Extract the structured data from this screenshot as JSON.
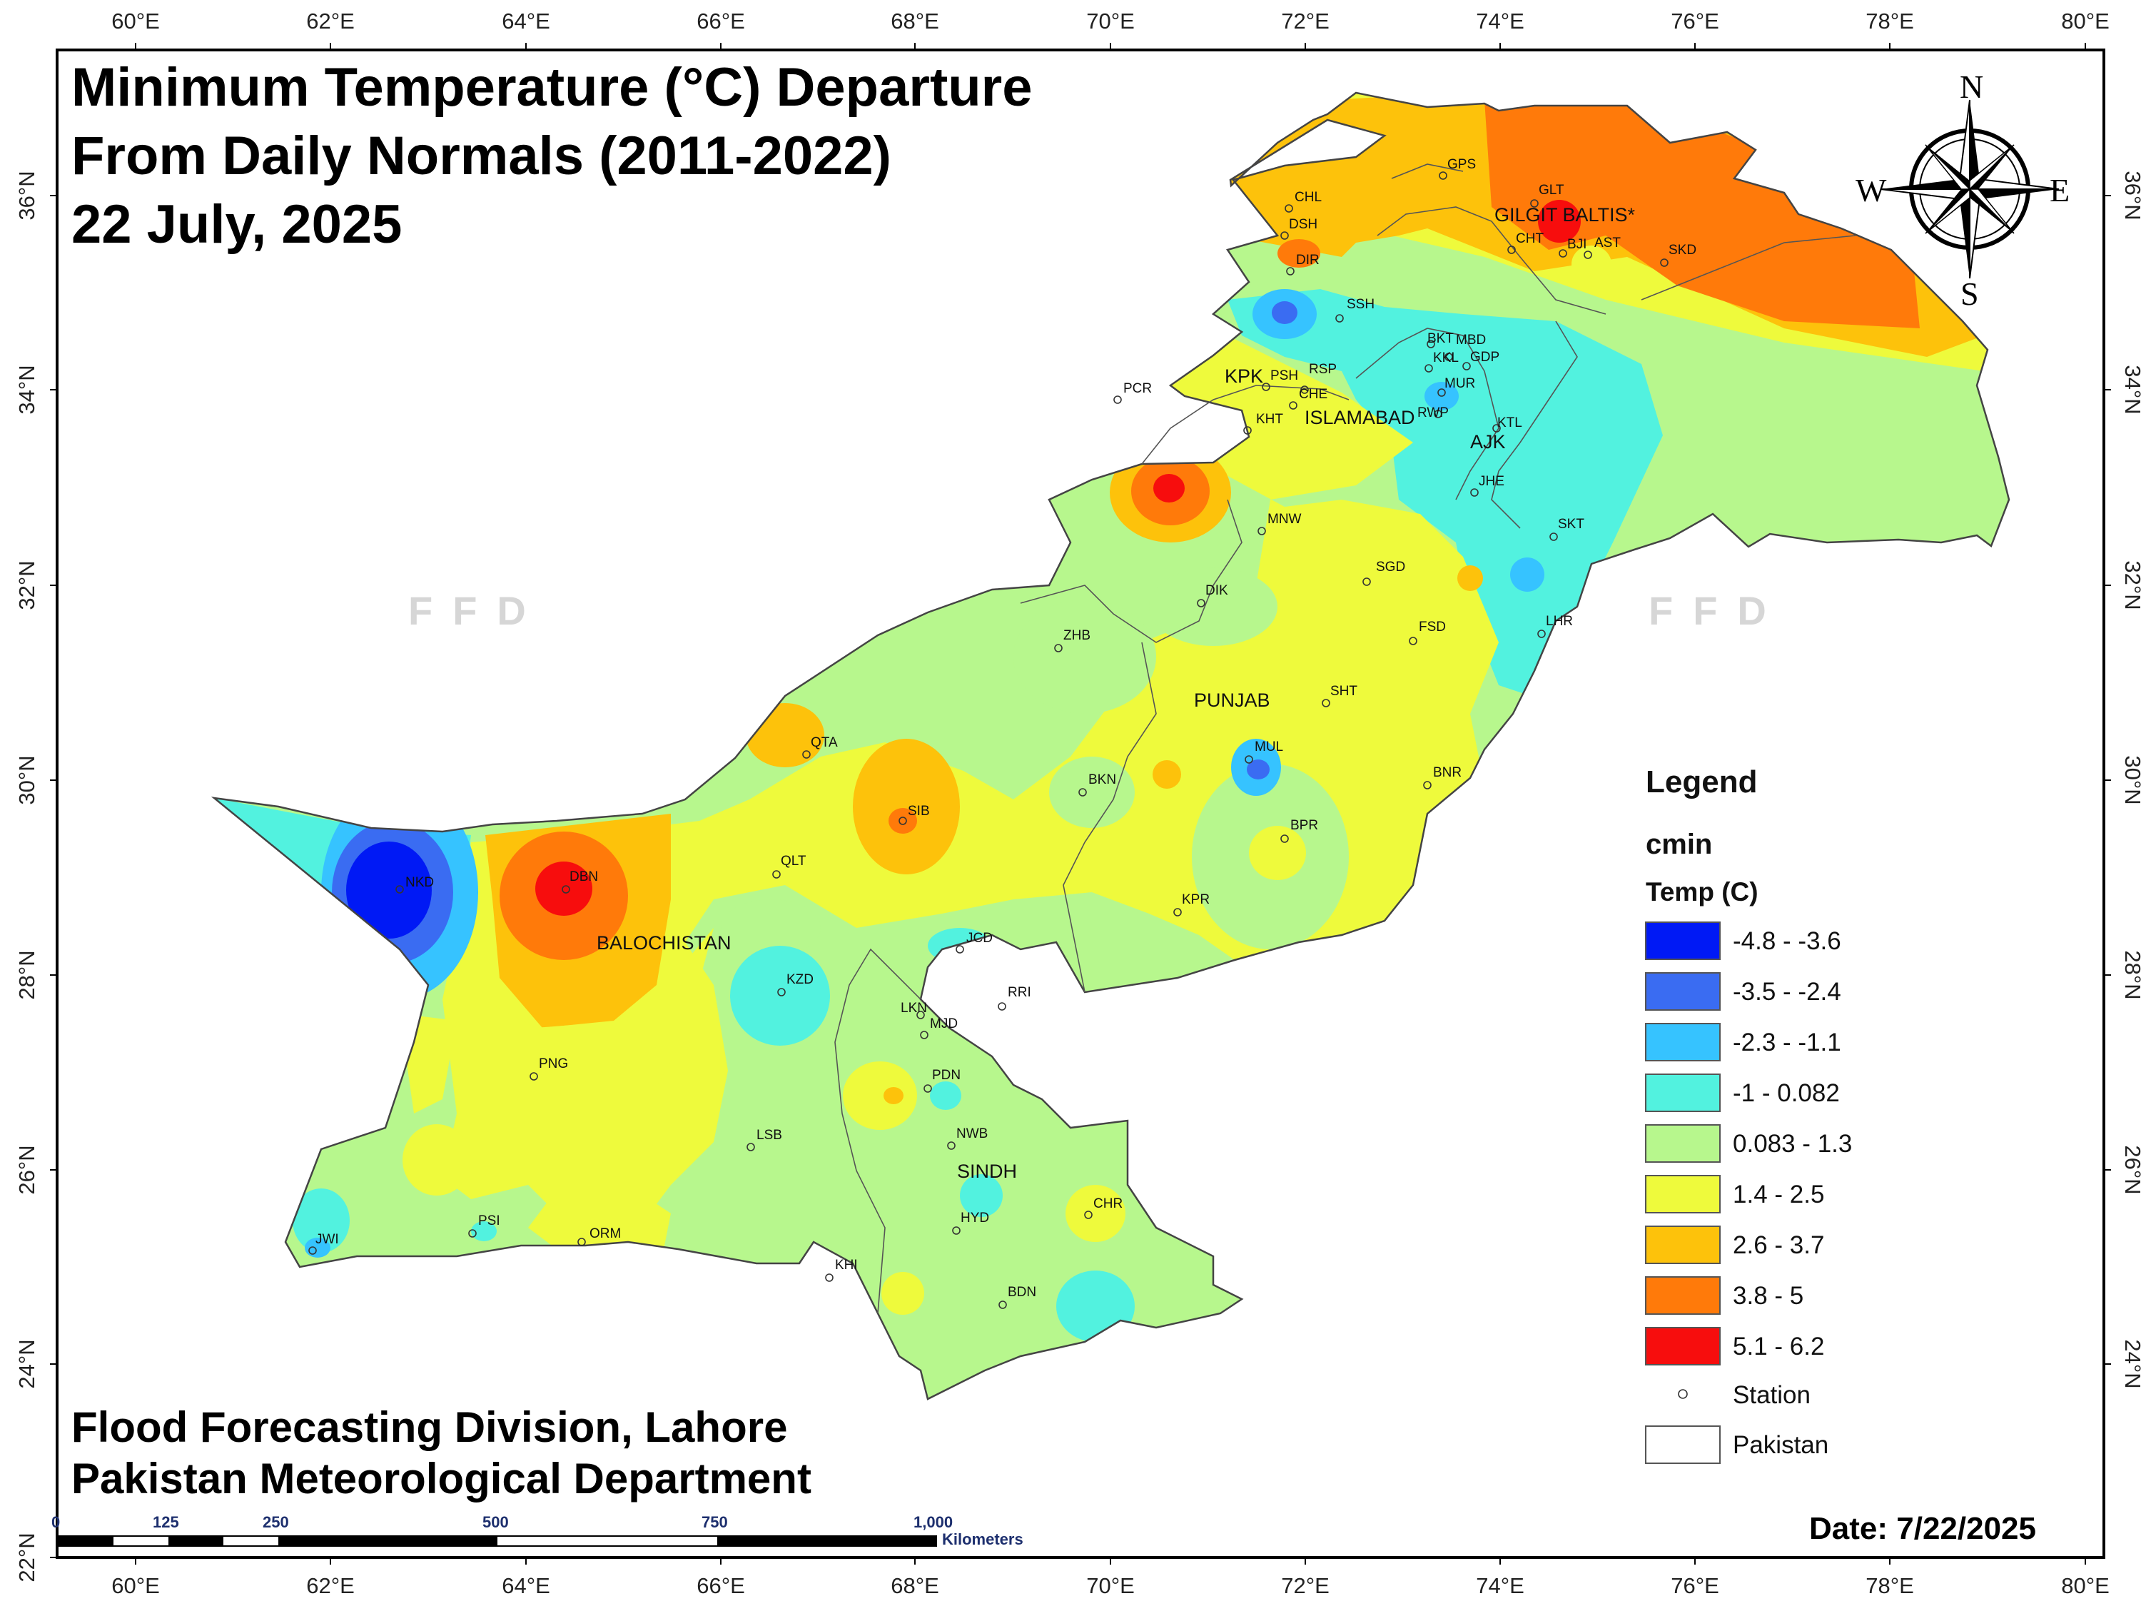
{
  "title": {
    "line1": "Minimum Temperature (°C) Departure",
    "line2": "From Daily Normals (2011-2022)",
    "line3": "22 July, 2025"
  },
  "credits": {
    "line1": "Flood Forecasting Division, Lahore",
    "line2": "Pakistan Meteorological Department"
  },
  "date_label": "Date: 7/22/2025",
  "watermark": "FFD",
  "longitude_ticks": [
    "60°E",
    "62°E",
    "64°E",
    "66°E",
    "68°E",
    "70°E",
    "72°E",
    "74°E",
    "76°E",
    "78°E",
    "80°E"
  ],
  "latitude_ticks": [
    "36°N",
    "34°N",
    "32°N",
    "30°N",
    "28°N",
    "26°N",
    "24°N",
    "22°N"
  ],
  "compass": {
    "n": "N",
    "s": "S",
    "e": "E",
    "w": "W"
  },
  "regions": [
    "GILGIT BALTIS*",
    "KPK",
    "ISLAMABAD",
    "AJK",
    "PUNJAB",
    "BALOCHISTAN",
    "SINDH"
  ],
  "stations": [
    "GPS",
    "CHL",
    "DSH",
    "DIR",
    "GLT",
    "CHT",
    "BJI",
    "AST",
    "SKD",
    "SSH",
    "BKT",
    "MBD",
    "KKL",
    "GDP",
    "MUR",
    "PSH",
    "RSP",
    "CHE",
    "RWP",
    "PCR",
    "KHT",
    "KTL",
    "JHE",
    "MNW",
    "SKT",
    "SGD",
    "DIK",
    "LHR",
    "FSD",
    "ZHB",
    "SHT",
    "QTA",
    "MUL",
    "BKN",
    "SIB",
    "BNR",
    "BPR",
    "QLT",
    "NKD",
    "DBN",
    "KPR",
    "JCD",
    "KZD",
    "RRI",
    "LKN",
    "MJD",
    "PNG",
    "PDN",
    "LSB",
    "NWB",
    "CHR",
    "HYD",
    "PSI",
    "JWI",
    "ORM",
    "KHI",
    "BDN"
  ],
  "legend": {
    "title": "Legend",
    "layer": "cmin",
    "field": "Temp (C)",
    "classes": [
      {
        "label": "-4.8 - -3.6",
        "color": "#0019f5"
      },
      {
        "label": "-3.5 - -2.4",
        "color": "#3a6cf2"
      },
      {
        "label": "-2.3 - -1.1",
        "color": "#36c3ff"
      },
      {
        "label": "-1 - 0.082",
        "color": "#52f2df"
      },
      {
        "label": "0.083 - 1.3",
        "color": "#b7f78d"
      },
      {
        "label": "1.4 - 2.5",
        "color": "#eefa3c"
      },
      {
        "label": "2.6 - 3.7",
        "color": "#fdc20b"
      },
      {
        "label": "3.8 - 5",
        "color": "#ff7a0a"
      },
      {
        "label": "5.1 - 6.2",
        "color": "#f70d0d"
      }
    ],
    "station_label": "Station",
    "boundary_label": "Pakistan"
  },
  "scalebar": {
    "ticks": [
      "0",
      "125",
      "250",
      "500",
      "750",
      "1,000"
    ],
    "unit": "Kilometers"
  }
}
